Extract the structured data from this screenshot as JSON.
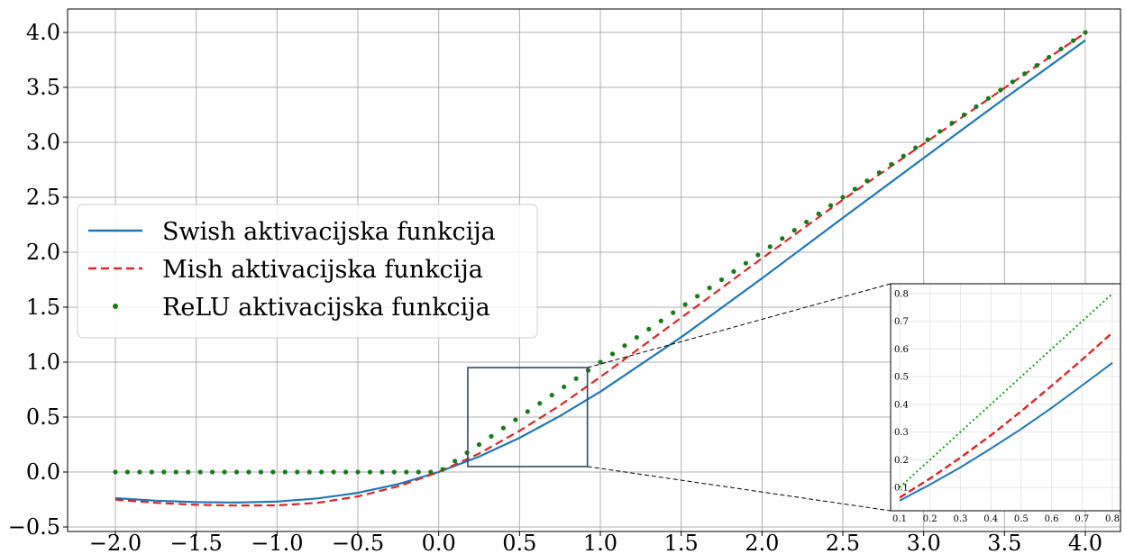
{
  "chart_data": {
    "type": "line",
    "title": "",
    "xlabel": "",
    "ylabel": "",
    "xlim": [
      -2.0,
      4.0
    ],
    "ylim": [
      -0.5,
      4.0
    ],
    "x_ticks": [
      "−2.0",
      "−1.5",
      "−1.0",
      "−0.5",
      "0.0",
      "0.5",
      "1.0",
      "1.5",
      "2.0",
      "2.5",
      "3.0",
      "3.5",
      "4.0"
    ],
    "y_ticks": [
      "−0.5",
      "0.0",
      "0.5",
      "1.0",
      "1.5",
      "2.0",
      "2.5",
      "3.0",
      "3.5",
      "4.0"
    ],
    "grid": true,
    "legend_position": "center-left",
    "series": [
      {
        "name": "Swish aktivacijska funkcija",
        "color": "#1f77b4",
        "style": "solid",
        "x": [
          -2.0,
          -1.75,
          -1.5,
          -1.25,
          -1.0,
          -0.75,
          -0.5,
          -0.25,
          0.0,
          0.25,
          0.5,
          0.75,
          1.0,
          1.5,
          2.0,
          2.5,
          3.0,
          3.5,
          4.0
        ],
        "y": [
          -0.238,
          -0.261,
          -0.274,
          -0.278,
          -0.269,
          -0.24,
          -0.189,
          -0.11,
          0.0,
          0.14,
          0.311,
          0.51,
          0.731,
          1.227,
          1.762,
          2.312,
          2.857,
          3.398,
          3.928
        ]
      },
      {
        "name": "Mish aktivacijska funkcija",
        "color": "#d62728",
        "style": "dashed",
        "x": [
          -2.0,
          -1.75,
          -1.5,
          -1.25,
          -1.0,
          -0.75,
          -0.5,
          -0.25,
          0.0,
          0.25,
          0.5,
          0.75,
          1.0,
          1.5,
          2.0,
          2.5,
          3.0,
          3.5,
          4.0
        ],
        "y": [
          -0.252,
          -0.28,
          -0.298,
          -0.305,
          -0.303,
          -0.28,
          -0.222,
          -0.13,
          0.0,
          0.168,
          0.375,
          0.606,
          0.865,
          1.404,
          1.944,
          2.477,
          2.987,
          3.494,
          3.997
        ]
      },
      {
        "name": "ReLU aktivacijska funkcija",
        "color": "#1a7a1a",
        "style": "dots",
        "x": [
          -2.0,
          4.0
        ],
        "y": [
          0.0,
          4.0
        ],
        "points": 81
      }
    ],
    "zoom_region": {
      "x": [
        0.18,
        0.92
      ],
      "y": [
        0.05,
        0.95
      ]
    },
    "inset": {
      "xlim": [
        0.1,
        0.8
      ],
      "ylim": [
        0.05,
        0.82
      ],
      "x_ticks": [
        "0.1",
        "0.2",
        "0.3",
        "0.4",
        "0.5",
        "0.6",
        "0.7",
        "0.8"
      ],
      "y_ticks": [
        "0.1",
        "0.2",
        "0.3",
        "0.4",
        "0.5",
        "0.6",
        "0.7",
        "0.8"
      ],
      "series": [
        {
          "name": "Swish",
          "color": "#1f77b4",
          "style": "solid",
          "x": [
            0.1,
            0.2,
            0.3,
            0.4,
            0.5,
            0.6,
            0.7,
            0.8
          ],
          "y": [
            0.052,
            0.11,
            0.172,
            0.24,
            0.311,
            0.387,
            0.468,
            0.55
          ]
        },
        {
          "name": "Mish",
          "color": "#d62728",
          "style": "dashed",
          "x": [
            0.1,
            0.2,
            0.3,
            0.4,
            0.5,
            0.6,
            0.7,
            0.8
          ],
          "y": [
            0.063,
            0.132,
            0.207,
            0.288,
            0.375,
            0.467,
            0.561,
            0.659
          ]
        },
        {
          "name": "ReLU",
          "color": "#1a9e1a",
          "style": "dotted",
          "x": [
            0.1,
            0.8
          ],
          "y": [
            0.1,
            0.8
          ]
        }
      ]
    }
  }
}
